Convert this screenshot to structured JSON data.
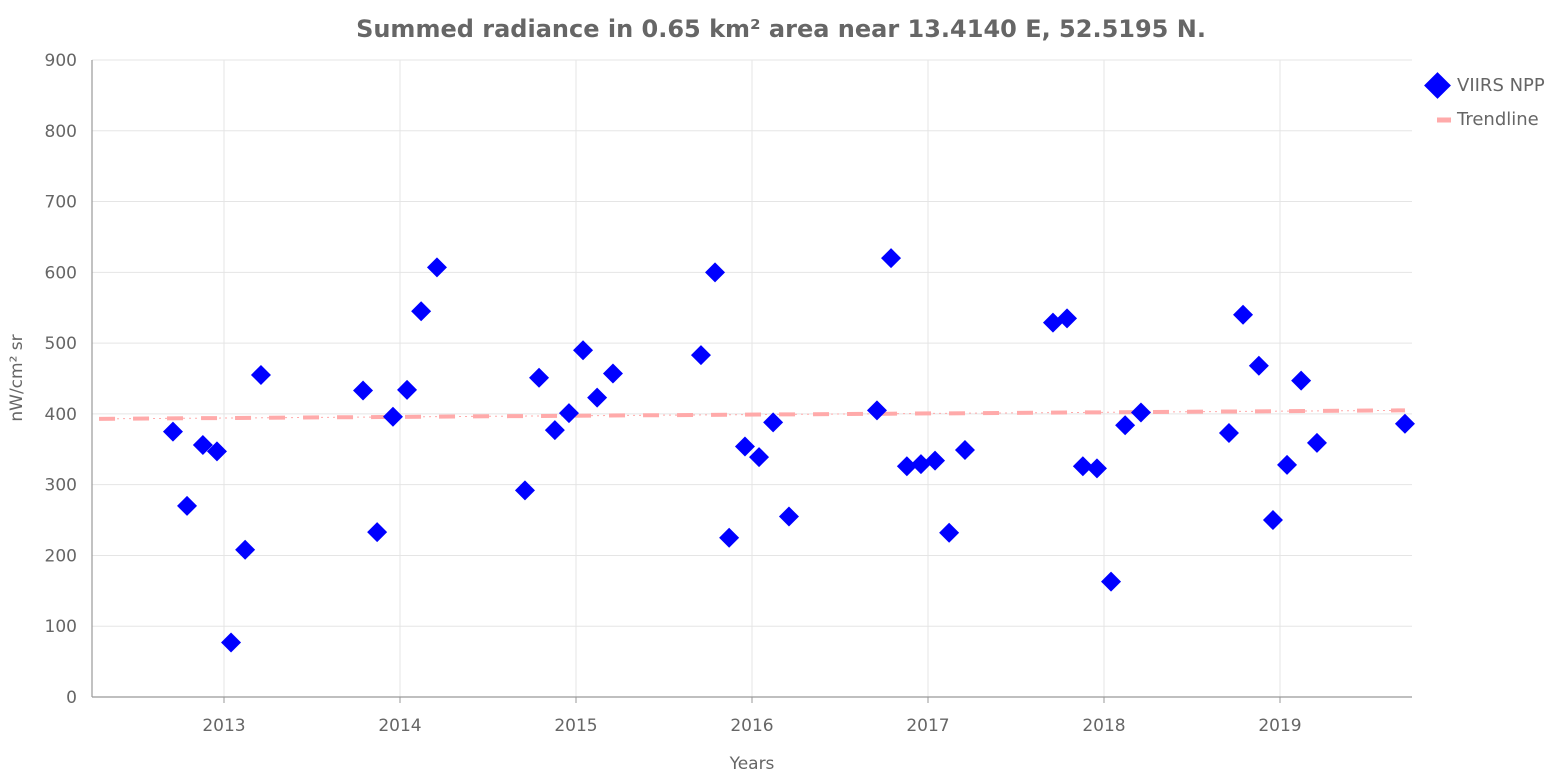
{
  "chart_data": {
    "type": "scatter",
    "title": "Summed radiance in 0.65 km² area near 13.4140 E, 52.5195 N.",
    "xlabel": "Years",
    "ylabel": "nW/cm² sr",
    "xlim": [
      2012.25,
      2019.75
    ],
    "ylim": [
      0,
      900
    ],
    "x_ticks": [
      2013,
      2014,
      2015,
      2016,
      2017,
      2018,
      2019
    ],
    "x_tick_labels": [
      "2013",
      "2014",
      "2015",
      "2016",
      "2017",
      "2018",
      "2019"
    ],
    "y_ticks": [
      0,
      100,
      200,
      300,
      400,
      500,
      600,
      700,
      800,
      900
    ],
    "y_tick_labels": [
      "0",
      "100",
      "200",
      "300",
      "400",
      "500",
      "600",
      "700",
      "800",
      "900"
    ],
    "grid": true,
    "legend_position": "top-right",
    "series": [
      {
        "name": "VIIRS NPP",
        "marker": "diamond",
        "color": "#0000ff",
        "x": [
          2012.71,
          2012.79,
          2012.88,
          2012.96,
          2013.04,
          2013.12,
          2013.21,
          2013.79,
          2013.87,
          2013.96,
          2014.04,
          2014.12,
          2014.21,
          2014.71,
          2014.79,
          2014.88,
          2014.96,
          2015.04,
          2015.12,
          2015.21,
          2015.71,
          2015.79,
          2015.87,
          2015.96,
          2016.04,
          2016.12,
          2016.21,
          2016.71,
          2016.79,
          2016.88,
          2016.96,
          2017.04,
          2017.12,
          2017.21,
          2017.71,
          2017.79,
          2017.88,
          2017.96,
          2018.04,
          2018.12,
          2018.21,
          2018.71,
          2018.79,
          2018.88,
          2018.96,
          2019.04,
          2019.12,
          2019.21,
          2019.71
        ],
        "y": [
          375,
          270,
          356,
          347,
          77,
          208,
          455,
          433,
          233,
          396,
          434,
          545,
          607,
          292,
          451,
          377,
          401,
          490,
          423,
          457,
          483,
          600,
          225,
          354,
          339,
          388,
          255,
          405,
          620,
          326,
          329,
          334,
          232,
          349,
          529,
          535,
          326,
          323,
          163,
          384,
          402,
          373,
          540,
          468,
          250,
          328,
          447,
          359,
          386
        ]
      },
      {
        "name": "Trendline",
        "style": "dashed",
        "color": "#ffaaaa",
        "x": [
          2012.29,
          2019.71
        ],
        "y": [
          393,
          405
        ]
      }
    ]
  }
}
